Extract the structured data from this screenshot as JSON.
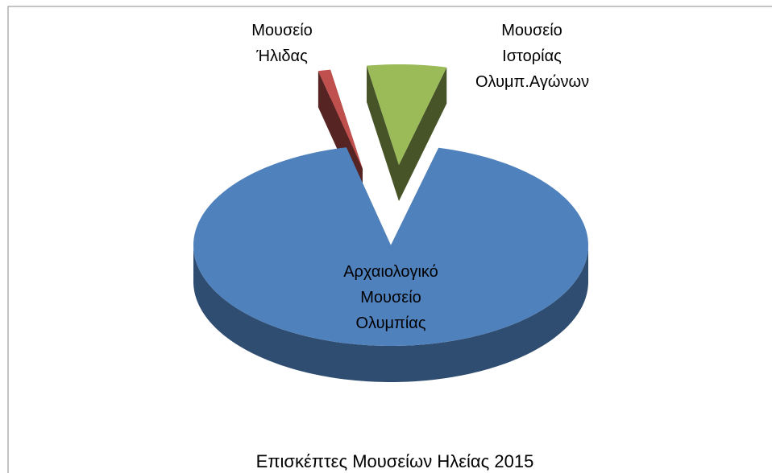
{
  "chart_data": {
    "type": "pie",
    "title": "Επισκέπτες Μουσείων Ηλείας 2015",
    "categories": [
      "Αρχαιολογικό Μουσείο Ολυμπίας",
      "Μουσείο Ήλιδας",
      "Μουσείο Ιστορίας Ολυμπ.Αγώνων"
    ],
    "values": [
      92.5,
      1,
      6.5
    ],
    "colors": [
      "#4f81bd",
      "#c0504d",
      "#9bbb59"
    ]
  }
}
